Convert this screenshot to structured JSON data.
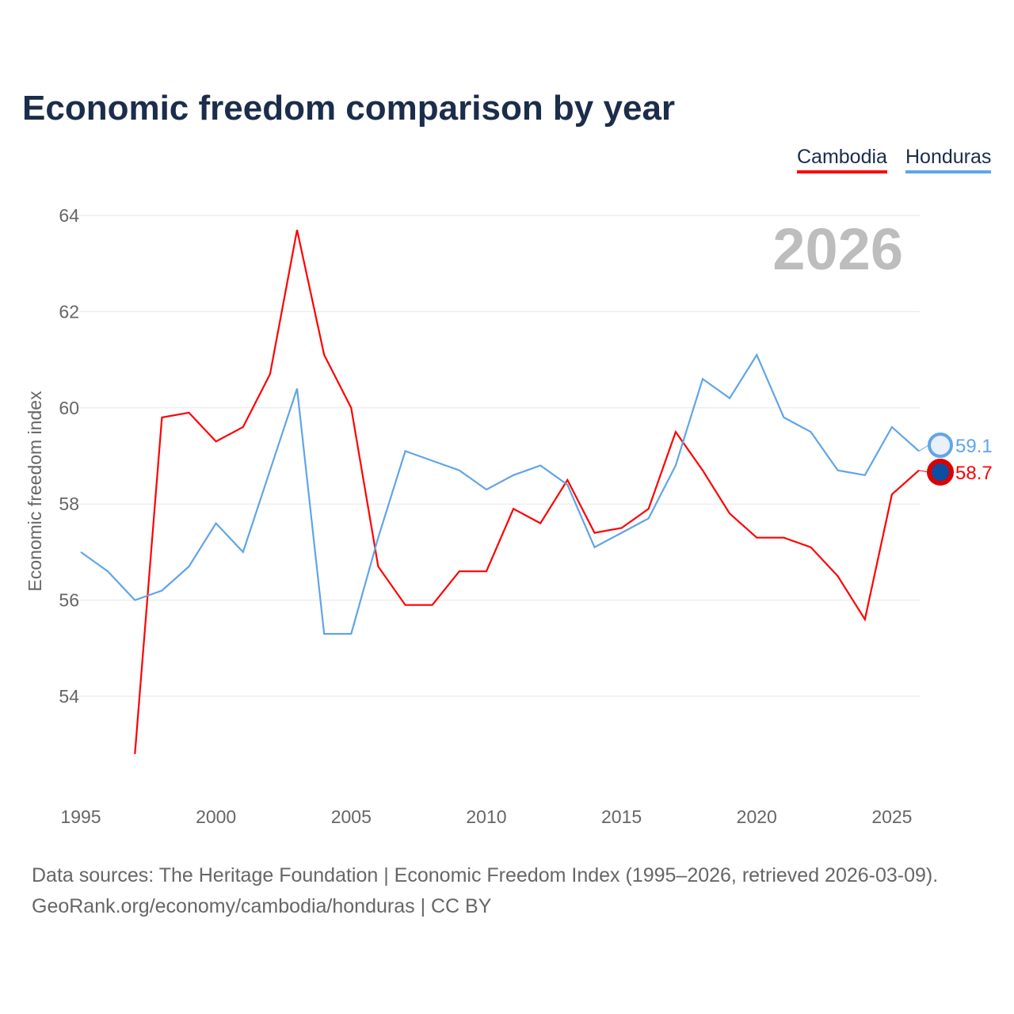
{
  "title": "Economic freedom comparison by year",
  "footer": {
    "line1": "Data sources: The Heritage Foundation | Economic Freedom Index (1995–2026, retrieved 2026-03-09).",
    "line2": "GeoRank.org/economy/cambodia/honduras | CC BY"
  },
  "chart_data": {
    "type": "line",
    "title": "Economic freedom comparison by year",
    "ylabel": "Economic freedom index",
    "xlabel": "",
    "year_watermark": "2026",
    "ylim": [
      52.5,
      64
    ],
    "xlim": [
      1995,
      2026
    ],
    "yticks": [
      54,
      56,
      58,
      60,
      62,
      64
    ],
    "xticks": [
      1995,
      2000,
      2005,
      2010,
      2015,
      2020,
      2025
    ],
    "grid": true,
    "legend_position": "top-right",
    "x": [
      1995,
      1996,
      1997,
      1998,
      1999,
      2000,
      2001,
      2002,
      2003,
      2004,
      2005,
      2006,
      2007,
      2008,
      2009,
      2010,
      2011,
      2012,
      2013,
      2014,
      2015,
      2016,
      2017,
      2018,
      2019,
      2020,
      2021,
      2022,
      2023,
      2024,
      2025,
      2026
    ],
    "series": [
      {
        "name": "Cambodia",
        "color": "#ff0000",
        "end_label": "58.7",
        "values": [
          null,
          null,
          52.8,
          59.8,
          59.9,
          59.3,
          59.6,
          60.7,
          63.7,
          61.1,
          60.0,
          56.7,
          55.9,
          55.9,
          56.6,
          56.6,
          57.9,
          57.6,
          58.5,
          57.4,
          57.5,
          57.9,
          59.5,
          58.7,
          57.8,
          57.3,
          57.3,
          57.1,
          56.5,
          55.6,
          58.2,
          58.7
        ]
      },
      {
        "name": "Honduras",
        "color": "#60a5e8",
        "end_label": "59.1",
        "values": [
          57.0,
          56.6,
          56.0,
          56.2,
          56.7,
          57.6,
          57.0,
          58.7,
          60.4,
          55.3,
          55.3,
          57.3,
          59.1,
          58.9,
          58.7,
          58.3,
          58.6,
          58.8,
          58.4,
          57.1,
          57.4,
          57.7,
          58.8,
          60.6,
          60.2,
          61.1,
          59.8,
          59.5,
          58.7,
          58.6,
          59.6,
          59.1
        ]
      }
    ]
  }
}
